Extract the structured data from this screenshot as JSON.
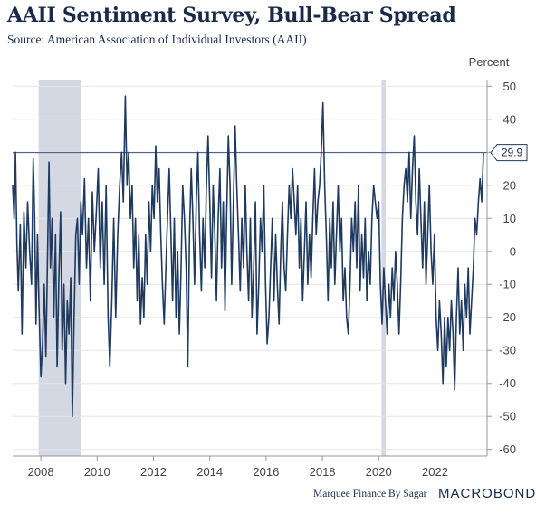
{
  "header": {
    "title": "AAII Sentiment Survey, Bull-Bear Spread",
    "subtitle": "Source: American Association of Individual Investors (AAII)"
  },
  "footer": {
    "credit": "Marquee Finance By Sagar",
    "brand": "MACROBOND"
  },
  "chart_data": {
    "type": "line",
    "title": "AAII Sentiment Survey, Bull-Bear Spread",
    "ylabel": "Percent",
    "xlim": [
      2007.0,
      2023.85
    ],
    "ylim": [
      -62,
      52
    ],
    "y_ticks": [
      50,
      40,
      30,
      20,
      10,
      0,
      -10,
      -20,
      -30,
      -40,
      -50,
      -60
    ],
    "x_ticks": [
      2008,
      2010,
      2012,
      2014,
      2016,
      2018,
      2020,
      2022
    ],
    "grid": "horizontal",
    "line_color": "#1f3a5f",
    "shaded_periods": [
      {
        "start": 2007.92,
        "end": 2009.42,
        "color": "#d3d8e2"
      },
      {
        "start": 2020.1,
        "end": 2020.25,
        "color": "#d3d8e2"
      }
    ],
    "reference_line": {
      "y": 29.9,
      "color": "#1f3a5f"
    },
    "last_value_label": "29.9",
    "series": [
      {
        "values": [
          [
            2007.0,
            20
          ],
          [
            2007.05,
            10
          ],
          [
            2007.1,
            30
          ],
          [
            2007.15,
            2
          ],
          [
            2007.2,
            -12
          ],
          [
            2007.27,
            8
          ],
          [
            2007.33,
            -25
          ],
          [
            2007.4,
            12
          ],
          [
            2007.47,
            -5
          ],
          [
            2007.53,
            15
          ],
          [
            2007.6,
            0
          ],
          [
            2007.67,
            -10
          ],
          [
            2007.73,
            28
          ],
          [
            2007.78,
            10
          ],
          [
            2007.83,
            -22
          ],
          [
            2007.88,
            5
          ],
          [
            2007.93,
            -15
          ],
          [
            2008.0,
            -38
          ],
          [
            2008.06,
            -28
          ],
          [
            2008.12,
            -10
          ],
          [
            2008.18,
            -32
          ],
          [
            2008.23,
            -5
          ],
          [
            2008.29,
            27
          ],
          [
            2008.34,
            -5
          ],
          [
            2008.4,
            10
          ],
          [
            2008.46,
            -20
          ],
          [
            2008.52,
            5
          ],
          [
            2008.58,
            -35
          ],
          [
            2008.64,
            -8
          ],
          [
            2008.7,
            12
          ],
          [
            2008.76,
            -30
          ],
          [
            2008.82,
            -10
          ],
          [
            2008.88,
            -40
          ],
          [
            2008.94,
            -15
          ],
          [
            2009.0,
            -25
          ],
          [
            2009.06,
            -8
          ],
          [
            2009.12,
            -50
          ],
          [
            2009.18,
            -20
          ],
          [
            2009.24,
            5
          ],
          [
            2009.3,
            10
          ],
          [
            2009.36,
            -10
          ],
          [
            2009.42,
            15
          ],
          [
            2009.48,
            5
          ],
          [
            2009.55,
            22
          ],
          [
            2009.62,
            -5
          ],
          [
            2009.69,
            10
          ],
          [
            2009.76,
            -15
          ],
          [
            2009.83,
            18
          ],
          [
            2009.9,
            0
          ],
          [
            2009.97,
            12
          ],
          [
            2010.04,
            25
          ],
          [
            2010.11,
            -5
          ],
          [
            2010.18,
            15
          ],
          [
            2010.25,
            -10
          ],
          [
            2010.32,
            20
          ],
          [
            2010.39,
            -20
          ],
          [
            2010.45,
            -35
          ],
          [
            2010.52,
            -15
          ],
          [
            2010.59,
            10
          ],
          [
            2010.66,
            -20
          ],
          [
            2010.73,
            5
          ],
          [
            2010.8,
            20
          ],
          [
            2010.87,
            30
          ],
          [
            2010.93,
            15
          ],
          [
            2011.0,
            47
          ],
          [
            2011.06,
            20
          ],
          [
            2011.12,
            30
          ],
          [
            2011.18,
            10
          ],
          [
            2011.24,
            20
          ],
          [
            2011.3,
            -5
          ],
          [
            2011.36,
            10
          ],
          [
            2011.42,
            -15
          ],
          [
            2011.48,
            5
          ],
          [
            2011.54,
            -22
          ],
          [
            2011.6,
            -8
          ],
          [
            2011.66,
            -20
          ],
          [
            2011.72,
            5
          ],
          [
            2011.78,
            -10
          ],
          [
            2011.84,
            15
          ],
          [
            2011.9,
            0
          ],
          [
            2011.96,
            20
          ],
          [
            2012.02,
            10
          ],
          [
            2012.08,
            32
          ],
          [
            2012.14,
            15
          ],
          [
            2012.2,
            25
          ],
          [
            2012.26,
            5
          ],
          [
            2012.32,
            -10
          ],
          [
            2012.38,
            -22
          ],
          [
            2012.44,
            -5
          ],
          [
            2012.5,
            10
          ],
          [
            2012.56,
            25
          ],
          [
            2012.62,
            5
          ],
          [
            2012.68,
            -15
          ],
          [
            2012.74,
            10
          ],
          [
            2012.8,
            -20
          ],
          [
            2012.86,
            0
          ],
          [
            2012.92,
            -25
          ],
          [
            2012.98,
            -5
          ],
          [
            2013.04,
            20
          ],
          [
            2013.1,
            10
          ],
          [
            2013.16,
            -5
          ],
          [
            2013.22,
            -35
          ],
          [
            2013.28,
            5
          ],
          [
            2013.34,
            25
          ],
          [
            2013.4,
            10
          ],
          [
            2013.46,
            -10
          ],
          [
            2013.52,
            15
          ],
          [
            2013.58,
            30
          ],
          [
            2013.64,
            5
          ],
          [
            2013.7,
            -12
          ],
          [
            2013.76,
            10
          ],
          [
            2013.82,
            -5
          ],
          [
            2013.88,
            20
          ],
          [
            2013.94,
            35
          ],
          [
            2014.0,
            15
          ],
          [
            2014.06,
            -8
          ],
          [
            2014.12,
            20
          ],
          [
            2014.18,
            5
          ],
          [
            2014.24,
            -15
          ],
          [
            2014.3,
            10
          ],
          [
            2014.36,
            25
          ],
          [
            2014.42,
            -5
          ],
          [
            2014.48,
            15
          ],
          [
            2014.54,
            -18
          ],
          [
            2014.6,
            10
          ],
          [
            2014.66,
            35
          ],
          [
            2014.72,
            20
          ],
          [
            2014.78,
            -10
          ],
          [
            2014.84,
            15
          ],
          [
            2014.9,
            38
          ],
          [
            2014.96,
            20
          ],
          [
            2015.02,
            5
          ],
          [
            2015.08,
            -12
          ],
          [
            2015.14,
            10
          ],
          [
            2015.2,
            -5
          ],
          [
            2015.26,
            20
          ],
          [
            2015.32,
            0
          ],
          [
            2015.38,
            -15
          ],
          [
            2015.44,
            10
          ],
          [
            2015.5,
            -20
          ],
          [
            2015.56,
            -5
          ],
          [
            2015.62,
            15
          ],
          [
            2015.68,
            -25
          ],
          [
            2015.74,
            -10
          ],
          [
            2015.8,
            10
          ],
          [
            2015.86,
            0
          ],
          [
            2015.92,
            20
          ],
          [
            2015.98,
            -10
          ],
          [
            2016.04,
            -28
          ],
          [
            2016.1,
            -20
          ],
          [
            2016.16,
            -5
          ],
          [
            2016.22,
            10
          ],
          [
            2016.28,
            -15
          ],
          [
            2016.34,
            5
          ],
          [
            2016.4,
            -10
          ],
          [
            2016.46,
            -22
          ],
          [
            2016.52,
            0
          ],
          [
            2016.58,
            15
          ],
          [
            2016.64,
            -5
          ],
          [
            2016.7,
            -12
          ],
          [
            2016.76,
            5
          ],
          [
            2016.82,
            20
          ],
          [
            2016.88,
            10
          ],
          [
            2016.94,
            25
          ],
          [
            2017.0,
            15
          ],
          [
            2017.06,
            5
          ],
          [
            2017.12,
            20
          ],
          [
            2017.18,
            -5
          ],
          [
            2017.24,
            10
          ],
          [
            2017.3,
            -15
          ],
          [
            2017.36,
            0
          ],
          [
            2017.42,
            15
          ],
          [
            2017.48,
            -10
          ],
          [
            2017.54,
            5
          ],
          [
            2017.6,
            -8
          ],
          [
            2017.66,
            10
          ],
          [
            2017.72,
            25
          ],
          [
            2017.78,
            5
          ],
          [
            2017.84,
            15
          ],
          [
            2017.9,
            20
          ],
          [
            2017.96,
            30
          ],
          [
            2018.02,
            45
          ],
          [
            2018.08,
            20
          ],
          [
            2018.14,
            5
          ],
          [
            2018.2,
            -15
          ],
          [
            2018.26,
            10
          ],
          [
            2018.32,
            -5
          ],
          [
            2018.38,
            15
          ],
          [
            2018.44,
            -10
          ],
          [
            2018.5,
            5
          ],
          [
            2018.56,
            20
          ],
          [
            2018.62,
            0
          ],
          [
            2018.68,
            10
          ],
          [
            2018.74,
            -15
          ],
          [
            2018.8,
            -5
          ],
          [
            2018.86,
            -20
          ],
          [
            2018.92,
            -25
          ],
          [
            2018.98,
            -10
          ],
          [
            2019.04,
            10
          ],
          [
            2019.1,
            0
          ],
          [
            2019.16,
            15
          ],
          [
            2019.22,
            -5
          ],
          [
            2019.28,
            20
          ],
          [
            2019.34,
            -12
          ],
          [
            2019.4,
            5
          ],
          [
            2019.46,
            -8
          ],
          [
            2019.52,
            10
          ],
          [
            2019.58,
            -15
          ],
          [
            2019.64,
            0
          ],
          [
            2019.7,
            -10
          ],
          [
            2019.76,
            10
          ],
          [
            2019.82,
            20
          ],
          [
            2019.88,
            15
          ],
          [
            2019.94,
            10
          ],
          [
            2020.0,
            15
          ],
          [
            2020.06,
            -10
          ],
          [
            2020.12,
            -22
          ],
          [
            2020.18,
            -5
          ],
          [
            2020.24,
            -15
          ],
          [
            2020.3,
            -25
          ],
          [
            2020.36,
            -10
          ],
          [
            2020.42,
            -20
          ],
          [
            2020.48,
            -5
          ],
          [
            2020.54,
            -15
          ],
          [
            2020.6,
            0
          ],
          [
            2020.66,
            -10
          ],
          [
            2020.72,
            -25
          ],
          [
            2020.78,
            -10
          ],
          [
            2020.84,
            10
          ],
          [
            2020.9,
            20
          ],
          [
            2020.96,
            25
          ],
          [
            2021.02,
            15
          ],
          [
            2021.08,
            30
          ],
          [
            2021.14,
            10
          ],
          [
            2021.2,
            25
          ],
          [
            2021.26,
            35
          ],
          [
            2021.32,
            15
          ],
          [
            2021.38,
            5
          ],
          [
            2021.44,
            25
          ],
          [
            2021.5,
            10
          ],
          [
            2021.56,
            -5
          ],
          [
            2021.62,
            15
          ],
          [
            2021.68,
            -10
          ],
          [
            2021.74,
            5
          ],
          [
            2021.8,
            20
          ],
          [
            2021.86,
            0
          ],
          [
            2021.92,
            -10
          ],
          [
            2021.98,
            5
          ],
          [
            2022.04,
            -20
          ],
          [
            2022.1,
            -30
          ],
          [
            2022.16,
            -15
          ],
          [
            2022.22,
            -25
          ],
          [
            2022.28,
            -40
          ],
          [
            2022.34,
            -20
          ],
          [
            2022.4,
            -35
          ],
          [
            2022.46,
            -20
          ],
          [
            2022.52,
            -30
          ],
          [
            2022.58,
            -15
          ],
          [
            2022.64,
            -25
          ],
          [
            2022.7,
            -42
          ],
          [
            2022.76,
            -20
          ],
          [
            2022.82,
            -5
          ],
          [
            2022.88,
            -25
          ],
          [
            2022.94,
            -15
          ],
          [
            2023.0,
            -30
          ],
          [
            2023.06,
            -10
          ],
          [
            2023.12,
            -20
          ],
          [
            2023.18,
            -5
          ],
          [
            2023.24,
            -25
          ],
          [
            2023.3,
            -15
          ],
          [
            2023.36,
            -5
          ],
          [
            2023.42,
            10
          ],
          [
            2023.48,
            5
          ],
          [
            2023.54,
            15
          ],
          [
            2023.6,
            22
          ],
          [
            2023.66,
            15
          ],
          [
            2023.72,
            29.9
          ]
        ]
      }
    ]
  }
}
